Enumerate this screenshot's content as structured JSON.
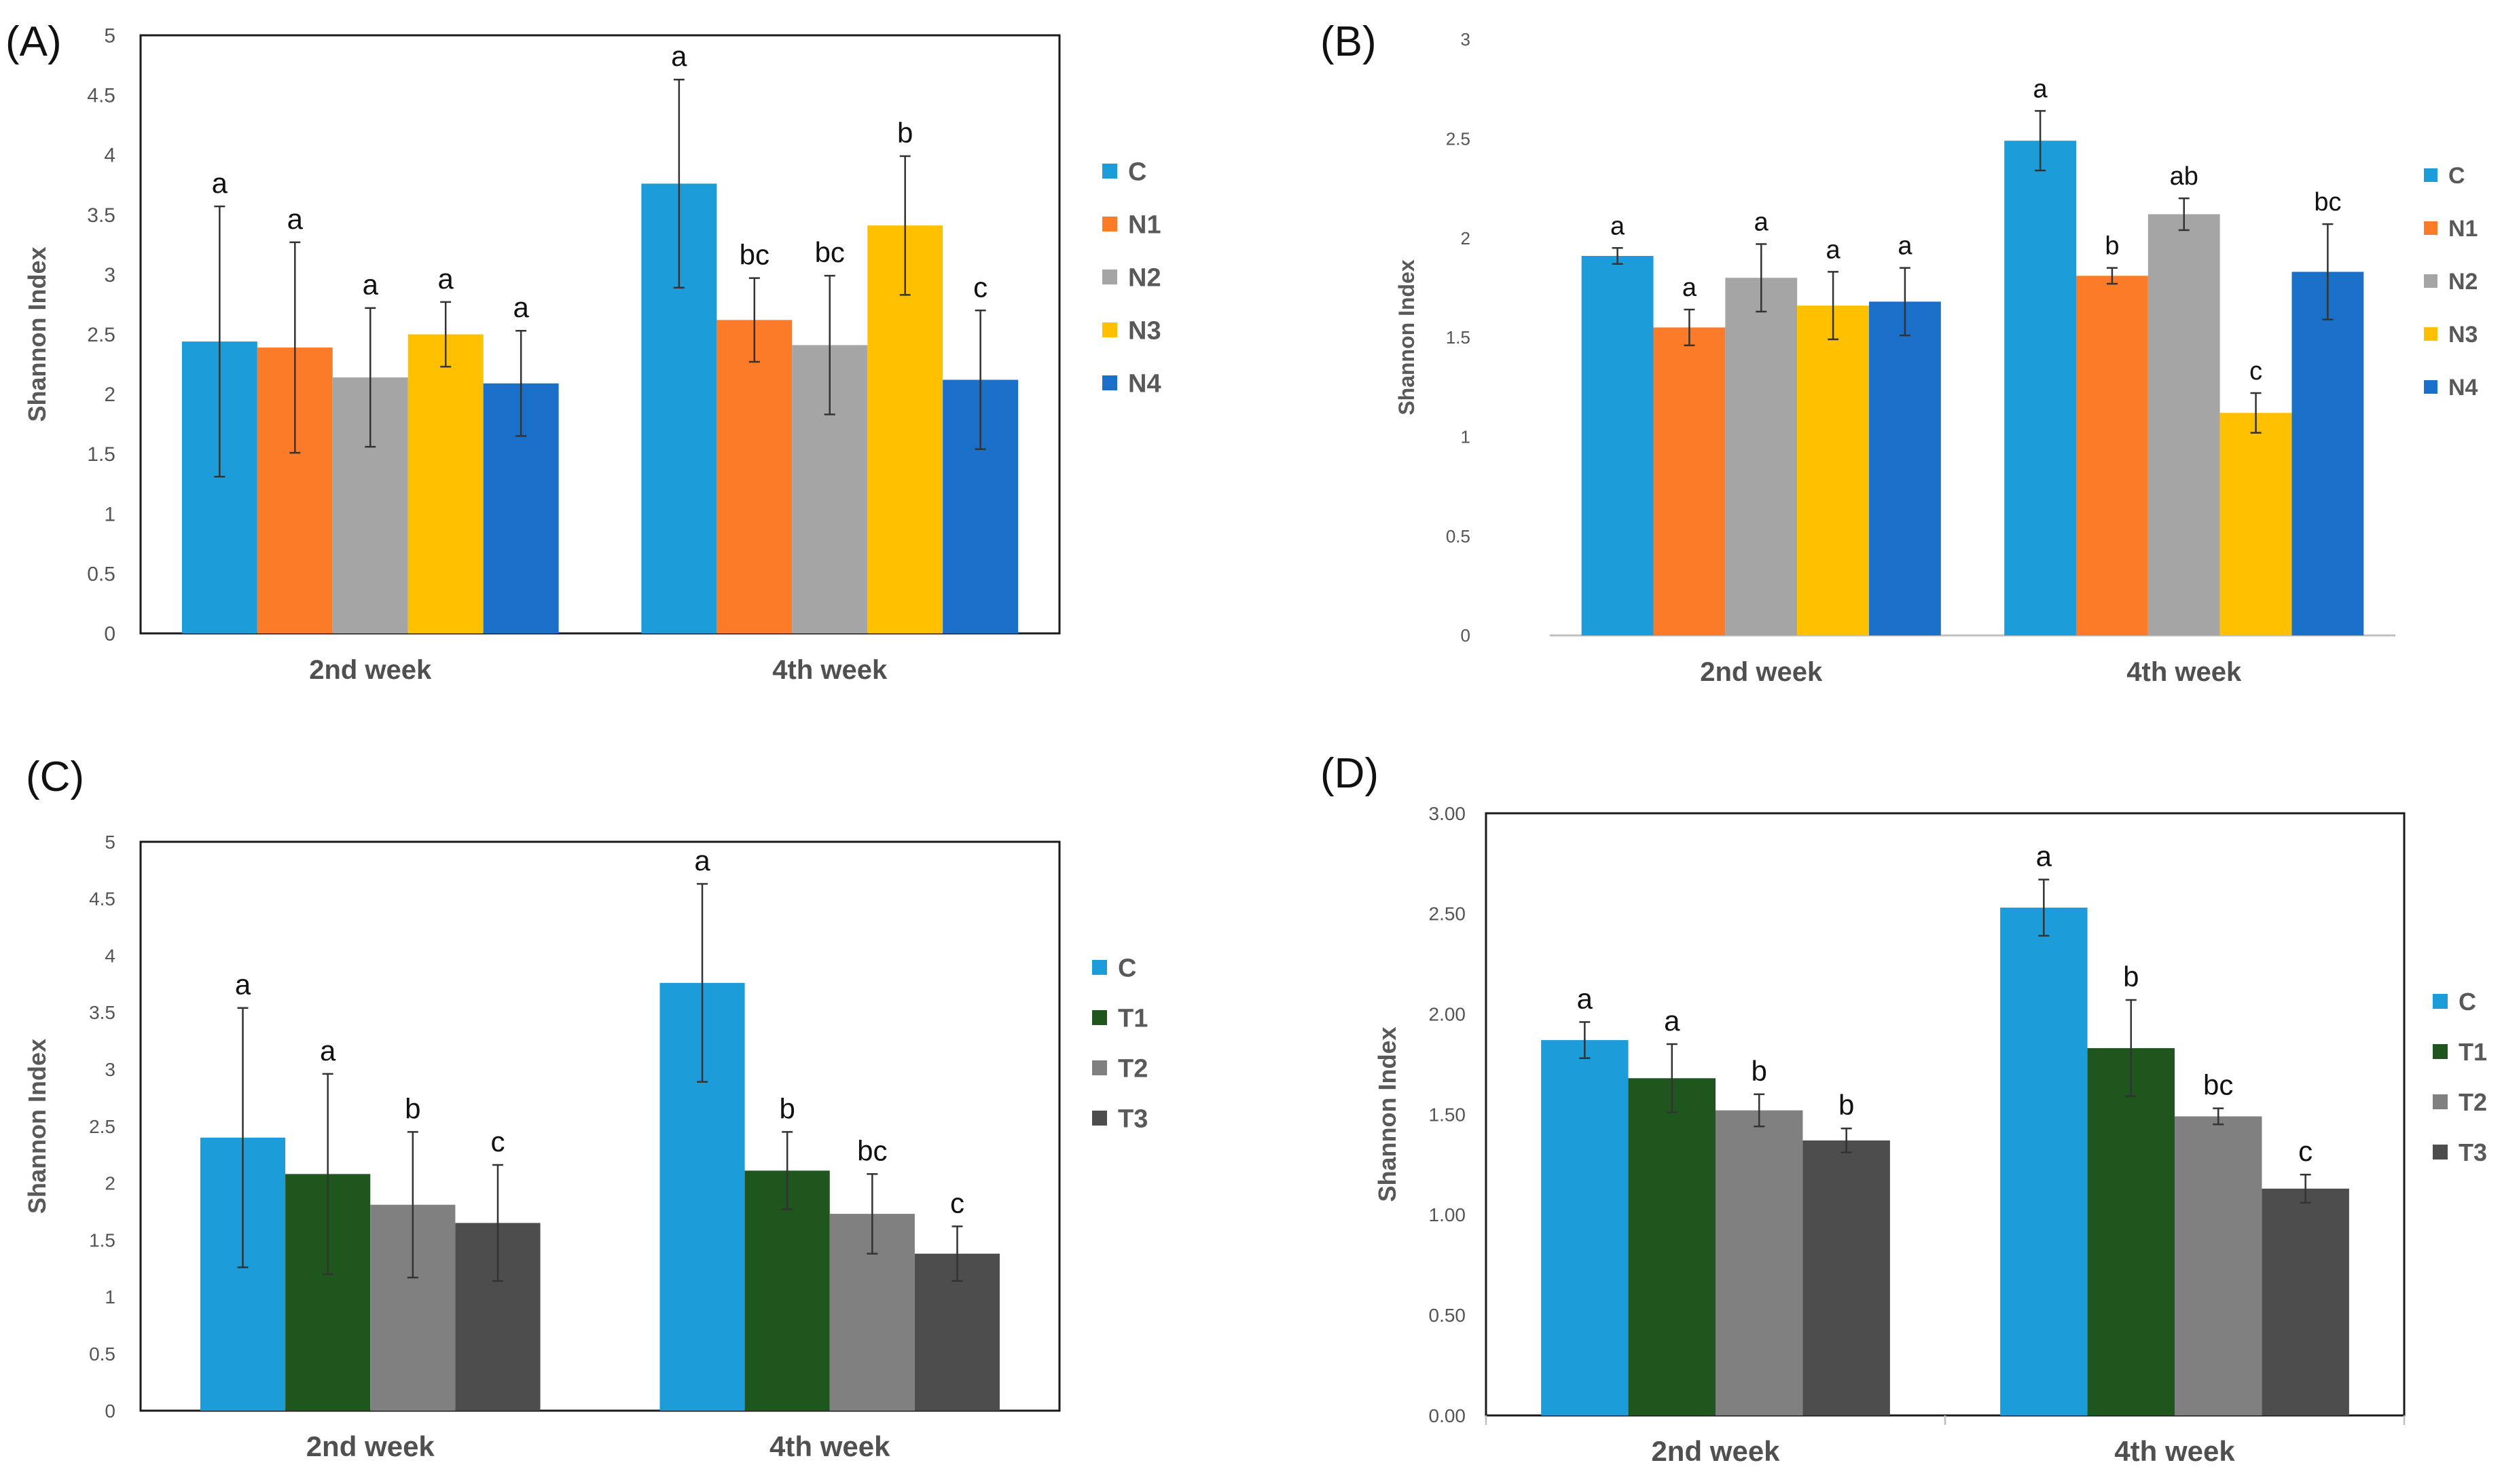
{
  "chart_data": [
    {
      "panel": "(A)",
      "type": "bar",
      "ylabel": "Shannon Index",
      "xlabel": "",
      "ylim": [
        0,
        5
      ],
      "yticks": [
        "0",
        "0.5",
        "1",
        "1.5",
        "2",
        "2.5",
        "3",
        "3.5",
        "4",
        "4.5",
        "5"
      ],
      "categories": [
        "2nd week",
        "4th week"
      ],
      "legend_position": "right",
      "series": [
        {
          "name": "C",
          "color": "#1C9CD8",
          "values": [
            2.44,
            3.76
          ],
          "errors": [
            1.13,
            0.87
          ],
          "letters": [
            "a",
            "a"
          ]
        },
        {
          "name": "N1",
          "color": "#FB7B29",
          "values": [
            2.39,
            2.62
          ],
          "errors": [
            0.88,
            0.35
          ],
          "letters": [
            "a",
            "bc"
          ]
        },
        {
          "name": "N2",
          "color": "#A5A5A5",
          "values": [
            2.14,
            2.41
          ],
          "errors": [
            0.58,
            0.58
          ],
          "letters": [
            "a",
            "bc"
          ]
        },
        {
          "name": "N3",
          "color": "#FFC000",
          "values": [
            2.5,
            3.41
          ],
          "errors": [
            0.27,
            0.58
          ],
          "letters": [
            "a",
            "b"
          ]
        },
        {
          "name": "N4",
          "color": "#1A6FC8",
          "values": [
            2.09,
            2.12
          ],
          "errors": [
            0.44,
            0.58
          ],
          "letters": [
            "a",
            "c"
          ]
        }
      ]
    },
    {
      "panel": "(B)",
      "type": "bar",
      "ylabel": "Shannon Index",
      "xlabel": "",
      "ylim": [
        0,
        3
      ],
      "yticks": [
        "0",
        "0.5",
        "1",
        "1.5",
        "2",
        "2.5",
        "3"
      ],
      "categories": [
        "2nd week",
        "4th week"
      ],
      "legend_position": "right",
      "series": [
        {
          "name": "C",
          "color": "#1C9CD8",
          "values": [
            1.91,
            2.49
          ],
          "errors": [
            0.04,
            0.15
          ],
          "letters": [
            "a",
            "a"
          ]
        },
        {
          "name": "N1",
          "color": "#FB7B29",
          "values": [
            1.55,
            1.81
          ],
          "errors": [
            0.09,
            0.04
          ],
          "letters": [
            "a",
            "b"
          ]
        },
        {
          "name": "N2",
          "color": "#A5A5A5",
          "values": [
            1.8,
            2.12
          ],
          "errors": [
            0.17,
            0.08
          ],
          "letters": [
            "a",
            "ab"
          ]
        },
        {
          "name": "N3",
          "color": "#FFC000",
          "values": [
            1.66,
            1.12
          ],
          "errors": [
            0.17,
            0.1
          ],
          "letters": [
            "a",
            "c"
          ]
        },
        {
          "name": "N4",
          "color": "#1A6FC8",
          "values": [
            1.68,
            1.83
          ],
          "errors": [
            0.17,
            0.24
          ],
          "letters": [
            "a",
            "bc"
          ]
        }
      ]
    },
    {
      "panel": "(C)",
      "type": "bar",
      "ylabel": "Shannon Index",
      "xlabel": "",
      "ylim": [
        0,
        5
      ],
      "yticks": [
        "0",
        "0.5",
        "1",
        "1.5",
        "2",
        "2.5",
        "3",
        "3.5",
        "4",
        "4.5",
        "5"
      ],
      "categories": [
        "2nd week",
        "4th week"
      ],
      "legend_position": "right",
      "series": [
        {
          "name": "C",
          "color": "#1C9CD8",
          "values": [
            2.4,
            3.76
          ],
          "errors": [
            1.14,
            0.87
          ],
          "letters": [
            "a",
            "a"
          ]
        },
        {
          "name": "T1",
          "color": "#1E561E",
          "values": [
            2.08,
            2.11
          ],
          "errors": [
            0.88,
            0.34
          ],
          "letters": [
            "a",
            "b"
          ]
        },
        {
          "name": "T2",
          "color": "#808080",
          "values": [
            1.81,
            1.73
          ],
          "errors": [
            0.64,
            0.35
          ],
          "letters": [
            "b",
            "bc"
          ]
        },
        {
          "name": "T3",
          "color": "#4D4D4D",
          "values": [
            1.65,
            1.38
          ],
          "errors": [
            0.51,
            0.24
          ],
          "letters": [
            "c",
            "c"
          ]
        }
      ]
    },
    {
      "panel": "(D)",
      "type": "bar",
      "ylabel": "Shannon Index",
      "xlabel": "",
      "ylim": [
        0,
        3
      ],
      "yticks": [
        "0.00",
        "0.50",
        "1.00",
        "1.50",
        "2.00",
        "2.50",
        "3.00"
      ],
      "categories": [
        "2nd week",
        "4th week"
      ],
      "legend_position": "right",
      "series": [
        {
          "name": "C",
          "color": "#1C9CD8",
          "values": [
            1.87,
            2.53
          ],
          "errors": [
            0.09,
            0.14
          ],
          "letters": [
            "a",
            "a"
          ]
        },
        {
          "name": "T1",
          "color": "#1E561E",
          "values": [
            1.68,
            1.83
          ],
          "errors": [
            0.17,
            0.24
          ],
          "letters": [
            "a",
            "b"
          ]
        },
        {
          "name": "T2",
          "color": "#808080",
          "values": [
            1.52,
            1.49
          ],
          "errors": [
            0.08,
            0.04
          ],
          "letters": [
            "b",
            "bc"
          ]
        },
        {
          "name": "T3",
          "color": "#4D4D4D",
          "values": [
            1.37,
            1.13
          ],
          "errors": [
            0.06,
            0.07
          ],
          "letters": [
            "b",
            "c"
          ]
        }
      ]
    }
  ]
}
